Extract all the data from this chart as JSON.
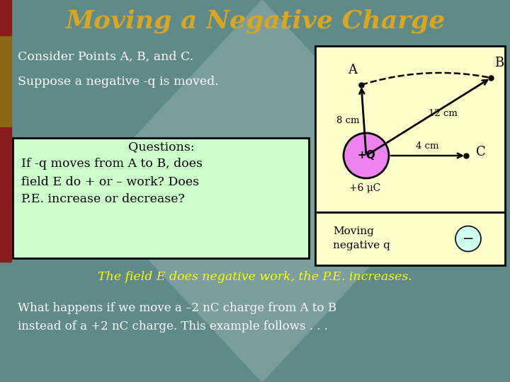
{
  "title": "Moving a Negative Charge",
  "title_color": "#DAA520",
  "title_fontsize": 26,
  "bg_color": "#5F8A8A",
  "bg_diamond_color": "#7A9E9E",
  "left_bar1_color": "#8B6914",
  "left_bar2_color": "#8B1A1A",
  "text_consider": "Consider Points A, B, and C.",
  "text_suppose": "Suppose a negative -q is moved.",
  "text_questions_title": "Questions:",
  "text_q1": "If -q moves from A to B, does",
  "text_q2": "field E do + or – work? Does",
  "text_q3": "P.E. increase or decrease?",
  "text_answer": "The field E does negative work, the P.E. increases.",
  "text_bottom1": "What happens if we move a –2 nC charge from A to B",
  "text_bottom2": "instead of a +2 nC charge. This example follows . . .",
  "answer_color": "#FFFF00",
  "white_color": "#FFFFFF",
  "black_color": "#000000",
  "diagram_bg": "#FFFFCC",
  "charge_color": "#EE82EE",
  "neg_charge_bg": "#CCFFEE",
  "charge_label": "+Q",
  "charge_value": "+6 μC",
  "point_A_label": "A",
  "point_B_label": "B",
  "point_C_label": "C",
  "label_8cm": "8 cm",
  "label_12cm": "12 cm",
  "label_4cm": "4 cm",
  "moving_line1": "Moving",
  "moving_line2": "negative q",
  "question_box_bg": "#CCFFCC",
  "question_box_border": "#333333"
}
